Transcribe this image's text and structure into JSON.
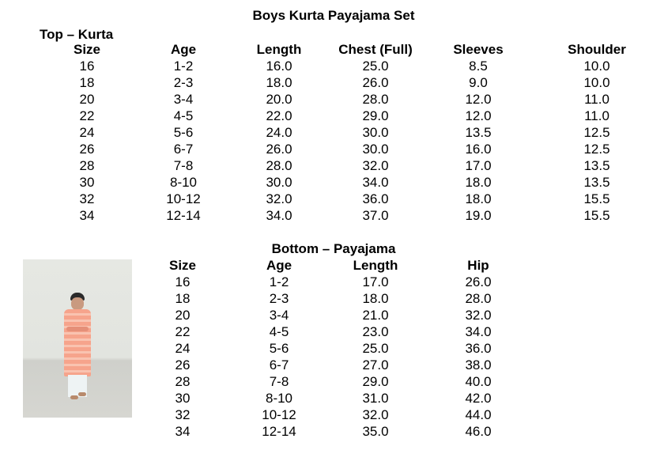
{
  "title": "Boys Kurta Payajama Set",
  "top": {
    "label": "Top – Kurta",
    "headers": [
      "Size",
      "Age",
      "Length",
      "Chest (Full)",
      "Sleeves",
      "Shoulder"
    ],
    "rows": [
      [
        "16",
        "1-2",
        "16.0",
        "25.0",
        "8.5",
        "10.0"
      ],
      [
        "18",
        "2-3",
        "18.0",
        "26.0",
        "9.0",
        "10.0"
      ],
      [
        "20",
        "3-4",
        "20.0",
        "28.0",
        "12.0",
        "11.0"
      ],
      [
        "22",
        "4-5",
        "22.0",
        "29.0",
        "12.0",
        "11.0"
      ],
      [
        "24",
        "5-6",
        "24.0",
        "30.0",
        "13.5",
        "12.5"
      ],
      [
        "26",
        "6-7",
        "26.0",
        "30.0",
        "16.0",
        "12.5"
      ],
      [
        "28",
        "7-8",
        "28.0",
        "32.0",
        "17.0",
        "13.5"
      ],
      [
        "30",
        "8-10",
        "30.0",
        "34.0",
        "18.0",
        "13.5"
      ],
      [
        "32",
        "10-12",
        "32.0",
        "36.0",
        "18.0",
        "15.5"
      ],
      [
        "34",
        "12-14",
        "34.0",
        "37.0",
        "19.0",
        "15.5"
      ]
    ]
  },
  "bottom": {
    "label": "Bottom – Payajama",
    "headers": [
      "Size",
      "Age",
      "Length",
      "Hip"
    ],
    "rows": [
      [
        "16",
        "1-2",
        "17.0",
        "26.0"
      ],
      [
        "18",
        "2-3",
        "18.0",
        "28.0"
      ],
      [
        "20",
        "3-4",
        "21.0",
        "32.0"
      ],
      [
        "22",
        "4-5",
        "23.0",
        "34.0"
      ],
      [
        "24",
        "5-6",
        "25.0",
        "36.0"
      ],
      [
        "26",
        "6-7",
        "27.0",
        "38.0"
      ],
      [
        "28",
        "7-8",
        "29.0",
        "40.0"
      ],
      [
        "30",
        "8-10",
        "31.0",
        "42.0"
      ],
      [
        "32",
        "10-12",
        "32.0",
        "44.0"
      ],
      [
        "34",
        "12-14",
        "35.0",
        "46.0"
      ]
    ]
  },
  "colors": {
    "kurta": "#f6a48c",
    "pyjama": "#e8f0f2",
    "wall": "#e6e8e3"
  }
}
